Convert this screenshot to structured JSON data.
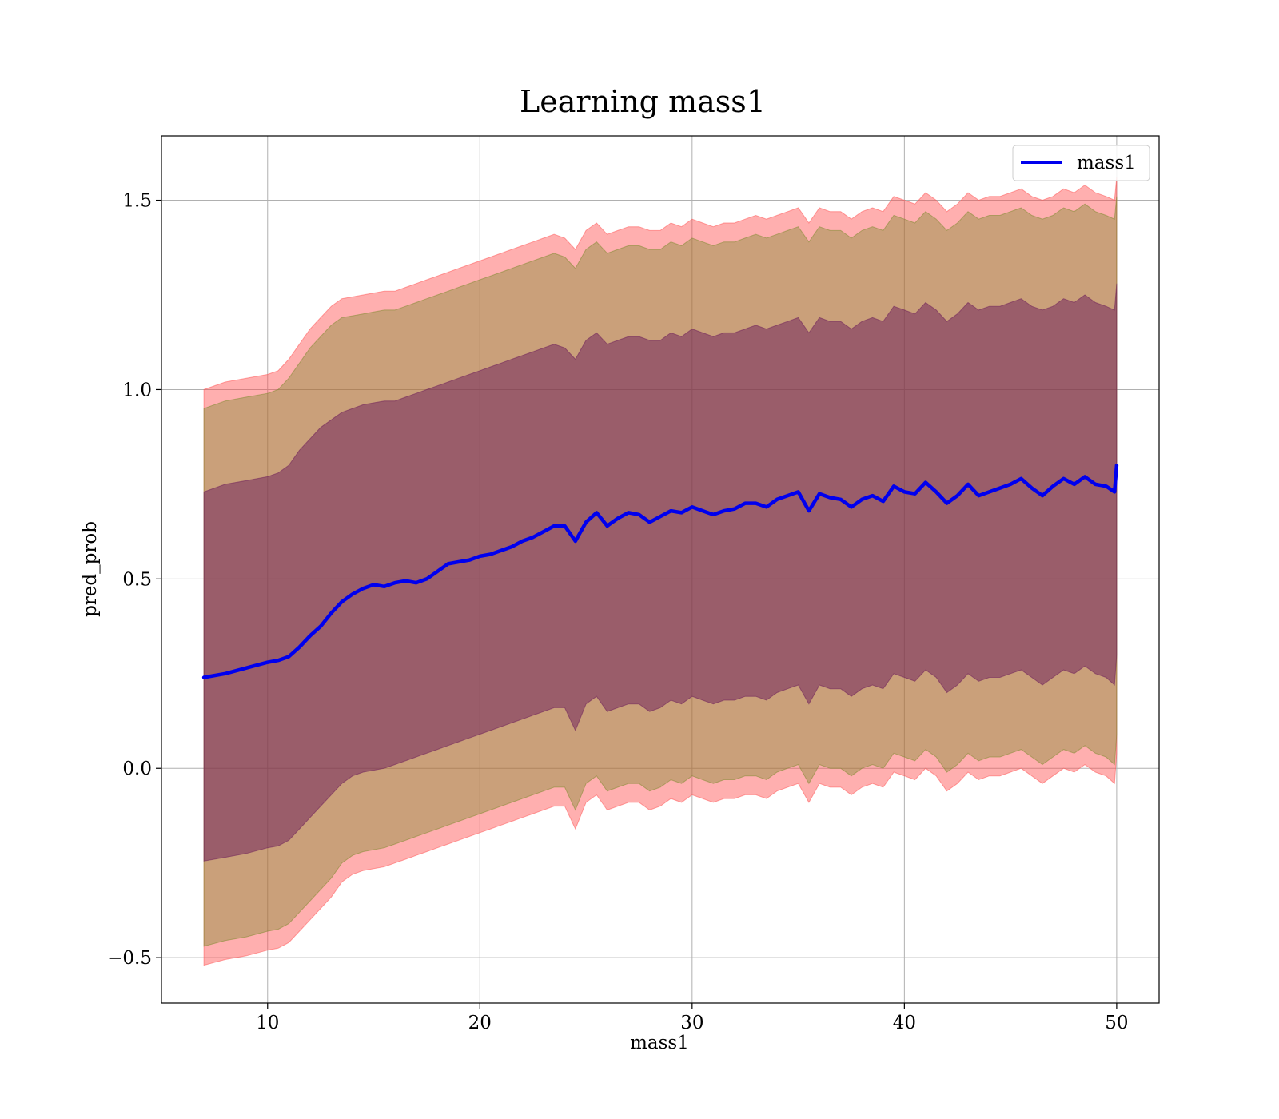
{
  "chart_data": {
    "type": "line",
    "title": "Learning mass1",
    "xlabel": "mass1",
    "ylabel": "pred_prob",
    "xlim": [
      5,
      52
    ],
    "ylim": [
      -0.62,
      1.67
    ],
    "grid": true,
    "legend_position": "top-right",
    "x_ticks": [
      10,
      20,
      30,
      40,
      50
    ],
    "y_ticks": [
      -0.5,
      0.0,
      0.5,
      1.0,
      1.5
    ],
    "y_tick_labels": [
      "−0.5",
      "0.0",
      "0.5",
      "1.0",
      "1.5"
    ],
    "series": [
      {
        "name": "mass1",
        "color": "#0000ee",
        "x": [
          7,
          8,
          9,
          10,
          10.5,
          11,
          11.5,
          12,
          12.5,
          13,
          13.5,
          14,
          14.5,
          15,
          15.5,
          16,
          16.5,
          17,
          17.5,
          18,
          18.5,
          19,
          19.5,
          20,
          20.5,
          21,
          21.5,
          22,
          22.5,
          23,
          23.5,
          24,
          24.5,
          25,
          25.5,
          26,
          26.5,
          27,
          27.5,
          28,
          28.5,
          29,
          29.5,
          30,
          30.5,
          31,
          31.5,
          32,
          32.5,
          33,
          33.5,
          34,
          34.5,
          35,
          35.5,
          36,
          36.5,
          37,
          37.5,
          38,
          38.5,
          39,
          39.5,
          40,
          40.5,
          41,
          41.5,
          42,
          42.5,
          43,
          43.5,
          44,
          44.5,
          45,
          45.5,
          46,
          46.5,
          47,
          47.5,
          48,
          48.5,
          49,
          49.5,
          49.9,
          50
        ],
        "values": [
          0.24,
          0.25,
          0.265,
          0.28,
          0.285,
          0.295,
          0.32,
          0.35,
          0.375,
          0.41,
          0.44,
          0.46,
          0.475,
          0.485,
          0.48,
          0.49,
          0.495,
          0.49,
          0.5,
          0.52,
          0.54,
          0.545,
          0.55,
          0.56,
          0.565,
          0.575,
          0.585,
          0.6,
          0.61,
          0.625,
          0.64,
          0.64,
          0.6,
          0.65,
          0.675,
          0.64,
          0.66,
          0.675,
          0.67,
          0.65,
          0.665,
          0.68,
          0.675,
          0.69,
          0.68,
          0.67,
          0.68,
          0.685,
          0.7,
          0.7,
          0.69,
          0.71,
          0.72,
          0.73,
          0.68,
          0.725,
          0.715,
          0.71,
          0.69,
          0.71,
          0.72,
          0.705,
          0.745,
          0.73,
          0.725,
          0.755,
          0.73,
          0.7,
          0.72,
          0.75,
          0.72,
          0.73,
          0.74,
          0.75,
          0.765,
          0.74,
          0.72,
          0.745,
          0.765,
          0.75,
          0.77,
          0.75,
          0.745,
          0.73,
          0.8
        ]
      }
    ],
    "bands": [
      {
        "color": "#ff4d4d",
        "opacity": 0.45,
        "upper": [
          1.0,
          1.02,
          1.03,
          1.04,
          1.05,
          1.08,
          1.12,
          1.16,
          1.19,
          1.22,
          1.24,
          1.245,
          1.25,
          1.255,
          1.26,
          1.26,
          1.27,
          1.28,
          1.29,
          1.3,
          1.31,
          1.32,
          1.33,
          1.34,
          1.35,
          1.36,
          1.37,
          1.38,
          1.39,
          1.4,
          1.41,
          1.4,
          1.37,
          1.42,
          1.44,
          1.41,
          1.42,
          1.43,
          1.43,
          1.42,
          1.42,
          1.44,
          1.43,
          1.45,
          1.44,
          1.43,
          1.44,
          1.44,
          1.45,
          1.46,
          1.45,
          1.46,
          1.47,
          1.48,
          1.44,
          1.48,
          1.47,
          1.47,
          1.45,
          1.47,
          1.48,
          1.47,
          1.51,
          1.5,
          1.49,
          1.52,
          1.5,
          1.47,
          1.49,
          1.52,
          1.5,
          1.51,
          1.51,
          1.52,
          1.53,
          1.51,
          1.5,
          1.51,
          1.53,
          1.52,
          1.54,
          1.52,
          1.51,
          1.5,
          1.56
        ],
        "lower": [
          -0.52,
          -0.505,
          -0.495,
          -0.48,
          -0.475,
          -0.46,
          -0.43,
          -0.4,
          -0.37,
          -0.34,
          -0.3,
          -0.28,
          -0.27,
          -0.265,
          -0.26,
          -0.25,
          -0.24,
          -0.23,
          -0.22,
          -0.21,
          -0.2,
          -0.19,
          -0.18,
          -0.17,
          -0.16,
          -0.15,
          -0.14,
          -0.13,
          -0.12,
          -0.11,
          -0.1,
          -0.1,
          -0.16,
          -0.09,
          -0.07,
          -0.11,
          -0.1,
          -0.09,
          -0.09,
          -0.11,
          -0.1,
          -0.08,
          -0.09,
          -0.07,
          -0.08,
          -0.09,
          -0.08,
          -0.08,
          -0.07,
          -0.07,
          -0.08,
          -0.06,
          -0.05,
          -0.04,
          -0.09,
          -0.04,
          -0.05,
          -0.05,
          -0.07,
          -0.05,
          -0.04,
          -0.05,
          -0.01,
          -0.02,
          -0.03,
          0.0,
          -0.02,
          -0.06,
          -0.04,
          -0.01,
          -0.03,
          -0.02,
          -0.02,
          -0.01,
          0.0,
          -0.02,
          -0.04,
          -0.02,
          0.0,
          -0.01,
          0.01,
          -0.01,
          -0.02,
          -0.04,
          0.04
        ]
      },
      {
        "color": "#7a8a2a",
        "opacity": 0.4,
        "upper": [
          0.95,
          0.97,
          0.98,
          0.99,
          1.0,
          1.03,
          1.07,
          1.11,
          1.14,
          1.17,
          1.19,
          1.195,
          1.2,
          1.205,
          1.21,
          1.21,
          1.22,
          1.23,
          1.24,
          1.25,
          1.26,
          1.27,
          1.28,
          1.29,
          1.3,
          1.31,
          1.32,
          1.33,
          1.34,
          1.35,
          1.36,
          1.35,
          1.32,
          1.37,
          1.39,
          1.36,
          1.37,
          1.38,
          1.38,
          1.37,
          1.37,
          1.39,
          1.38,
          1.4,
          1.39,
          1.38,
          1.39,
          1.39,
          1.4,
          1.41,
          1.4,
          1.41,
          1.42,
          1.43,
          1.39,
          1.43,
          1.42,
          1.42,
          1.4,
          1.42,
          1.43,
          1.42,
          1.46,
          1.45,
          1.44,
          1.47,
          1.45,
          1.42,
          1.44,
          1.47,
          1.45,
          1.46,
          1.46,
          1.47,
          1.48,
          1.46,
          1.45,
          1.46,
          1.48,
          1.47,
          1.49,
          1.47,
          1.46,
          1.45,
          1.51
        ],
        "lower": [
          -0.47,
          -0.455,
          -0.445,
          -0.43,
          -0.425,
          -0.41,
          -0.38,
          -0.35,
          -0.32,
          -0.29,
          -0.25,
          -0.23,
          -0.22,
          -0.215,
          -0.21,
          -0.2,
          -0.19,
          -0.18,
          -0.17,
          -0.16,
          -0.15,
          -0.14,
          -0.13,
          -0.12,
          -0.11,
          -0.1,
          -0.09,
          -0.08,
          -0.07,
          -0.06,
          -0.05,
          -0.05,
          -0.11,
          -0.04,
          -0.02,
          -0.06,
          -0.05,
          -0.04,
          -0.04,
          -0.06,
          -0.05,
          -0.03,
          -0.04,
          -0.02,
          -0.03,
          -0.04,
          -0.03,
          -0.03,
          -0.02,
          -0.02,
          -0.03,
          -0.01,
          0.0,
          0.01,
          -0.04,
          0.01,
          0.0,
          0.0,
          -0.02,
          0.0,
          0.01,
          0.0,
          0.04,
          0.03,
          0.02,
          0.05,
          0.03,
          -0.01,
          0.01,
          0.04,
          0.02,
          0.03,
          0.03,
          0.04,
          0.05,
          0.03,
          0.01,
          0.03,
          0.05,
          0.04,
          0.06,
          0.04,
          0.03,
          0.01,
          0.09
        ]
      },
      {
        "color": "#6a1a5a",
        "opacity": 0.5,
        "upper": [
          0.73,
          0.75,
          0.76,
          0.77,
          0.78,
          0.8,
          0.84,
          0.87,
          0.9,
          0.92,
          0.94,
          0.95,
          0.96,
          0.965,
          0.97,
          0.97,
          0.98,
          0.99,
          1.0,
          1.01,
          1.02,
          1.03,
          1.04,
          1.05,
          1.06,
          1.07,
          1.08,
          1.09,
          1.1,
          1.11,
          1.12,
          1.11,
          1.08,
          1.13,
          1.15,
          1.12,
          1.13,
          1.14,
          1.14,
          1.13,
          1.13,
          1.15,
          1.14,
          1.16,
          1.15,
          1.14,
          1.15,
          1.15,
          1.16,
          1.17,
          1.16,
          1.17,
          1.18,
          1.19,
          1.15,
          1.19,
          1.18,
          1.18,
          1.16,
          1.18,
          1.19,
          1.18,
          1.22,
          1.21,
          1.2,
          1.23,
          1.21,
          1.18,
          1.2,
          1.23,
          1.21,
          1.22,
          1.22,
          1.23,
          1.24,
          1.22,
          1.21,
          1.22,
          1.24,
          1.23,
          1.25,
          1.23,
          1.22,
          1.21,
          1.28
        ],
        "lower": [
          -0.245,
          -0.235,
          -0.225,
          -0.21,
          -0.205,
          -0.19,
          -0.16,
          -0.13,
          -0.1,
          -0.07,
          -0.04,
          -0.02,
          -0.01,
          -0.005,
          0.0,
          0.01,
          0.02,
          0.03,
          0.04,
          0.05,
          0.06,
          0.07,
          0.08,
          0.09,
          0.1,
          0.11,
          0.12,
          0.13,
          0.14,
          0.15,
          0.16,
          0.16,
          0.1,
          0.17,
          0.19,
          0.15,
          0.16,
          0.17,
          0.17,
          0.15,
          0.16,
          0.18,
          0.17,
          0.19,
          0.18,
          0.17,
          0.18,
          0.18,
          0.19,
          0.19,
          0.18,
          0.2,
          0.21,
          0.22,
          0.17,
          0.22,
          0.21,
          0.21,
          0.19,
          0.21,
          0.22,
          0.21,
          0.25,
          0.24,
          0.23,
          0.26,
          0.24,
          0.2,
          0.22,
          0.25,
          0.23,
          0.24,
          0.24,
          0.25,
          0.26,
          0.24,
          0.22,
          0.24,
          0.26,
          0.25,
          0.27,
          0.25,
          0.24,
          0.22,
          0.3
        ]
      }
    ]
  }
}
